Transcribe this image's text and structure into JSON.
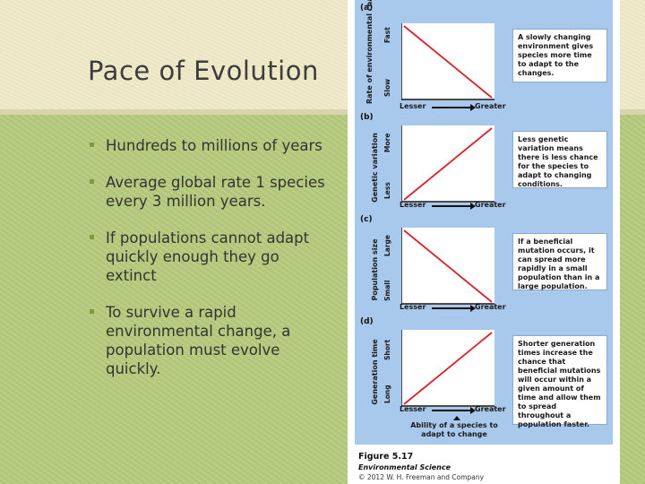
{
  "slide": {
    "title": "Pace of Evolution",
    "bullets": [
      "Hundreds to millions of years",
      "Average global rate 1 species every 3 million years.",
      "If populations cannot adapt quickly enough they go extinct",
      "To survive a rapid environmental change, a population must evolve quickly."
    ]
  },
  "figure": {
    "panels": [
      {
        "letter": "(a)",
        "y_label": "Rate of environmental change",
        "y_high": "Fast",
        "y_low": "Slow",
        "x_low": "Lesser",
        "x_high": "Greater",
        "trend": "decreasing",
        "note": "A slowly changing environment gives species more time to adapt to the changes."
      },
      {
        "letter": "(b)",
        "y_label": "Genetic variation",
        "y_high": "More",
        "y_low": "Less",
        "x_low": "Lesser",
        "x_high": "Greater",
        "trend": "increasing",
        "note": "Less genetic variation means there is less chance for the species to adapt to changing conditions."
      },
      {
        "letter": "(c)",
        "y_label": "Population size",
        "y_high": "Large",
        "y_low": "Small",
        "x_low": "Lesser",
        "x_high": "Greater",
        "trend": "decreasing",
        "note": "If a beneficial mutation occurs, it can spread more rapidly in a small population than in a large population."
      },
      {
        "letter": "(d)",
        "y_label": "Generation time",
        "y_high": "Short",
        "y_low": "Long",
        "x_low": "Lesser",
        "x_high": "Greater",
        "trend": "increasing",
        "note": "Shorter generation times increase the chance that beneficial mutations will occur within a given amount of time and allow them to spread throughout a population faster."
      }
    ],
    "x_axis_title": "Ability of a species to adapt to change",
    "caption_figure": "Figure 5.17",
    "caption_book": "Environmental Science",
    "caption_copyright": "© 2012 W. H. Freeman and Company",
    "line_color": "#d9232e",
    "panel_bg_color": "#a9c9ec"
  }
}
